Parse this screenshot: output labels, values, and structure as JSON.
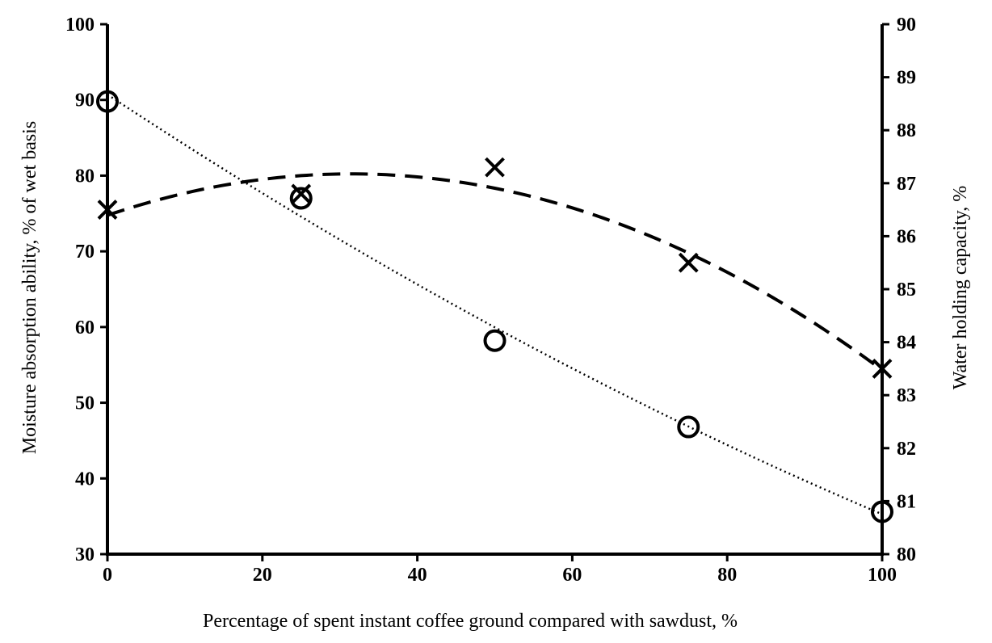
{
  "chart_data": {
    "type": "scatter",
    "title": "",
    "xlabel": "Percentage of spent instant coffee ground compared with sawdust, %",
    "ylabel_left": "Moisture absorption ability, % of wet basis",
    "ylabel_right": "Water holding capacity, %",
    "xlim": [
      0,
      100
    ],
    "ylim_left": [
      30,
      100
    ],
    "ylim_right": [
      80,
      90
    ],
    "x_ticks": [
      "0",
      "20",
      "40",
      "60",
      "80",
      "100"
    ],
    "y_left_ticks": [
      "30",
      "40",
      "50",
      "60",
      "70",
      "80",
      "90",
      "100"
    ],
    "y_right_ticks": [
      "80",
      "81",
      "82",
      "83",
      "84",
      "85",
      "86",
      "87",
      "88",
      "89",
      "90"
    ],
    "grid": false,
    "legend": "none",
    "series": [
      {
        "marker": "circle",
        "axis": "left",
        "trendline": "dotted",
        "x": [
          0,
          25,
          50,
          75,
          100
        ],
        "y": [
          89.8,
          77,
          58.2,
          46.8,
          35.6
        ]
      },
      {
        "marker": "x",
        "axis": "right",
        "trendline": "dashed",
        "x": [
          0,
          25,
          50,
          75,
          100
        ],
        "y": [
          86.5,
          86.8,
          87.3,
          85.5,
          83.5
        ]
      }
    ]
  }
}
